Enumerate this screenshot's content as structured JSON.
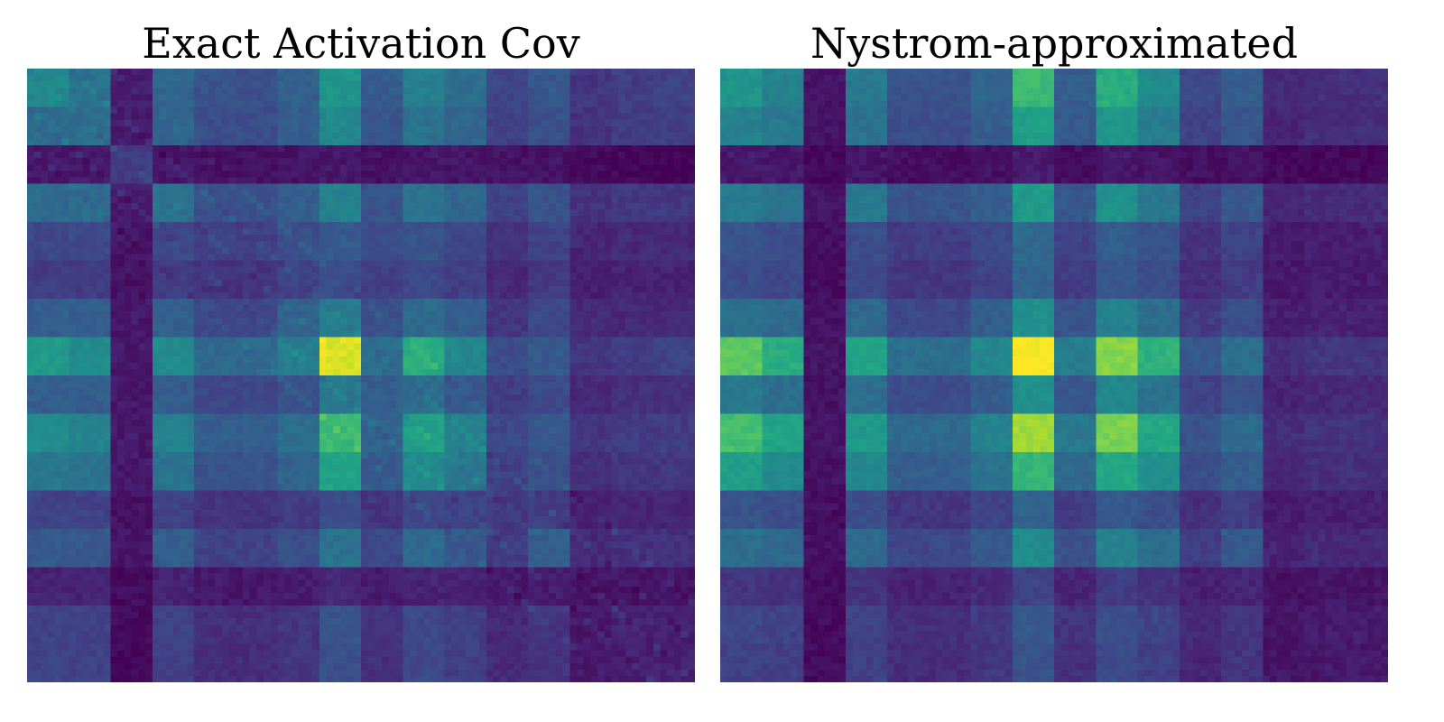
{
  "chart_data": [
    {
      "type": "heatmap",
      "title": "Exact Activation Cov",
      "colormap": "viridis",
      "grid": false,
      "block_rows": 16,
      "block_cols": 16,
      "fine_cells_per_block": 6,
      "values": [
        [
          0.46,
          0.38,
          0.08,
          0.33,
          0.26,
          0.25,
          0.31,
          0.52,
          0.29,
          0.43,
          0.36,
          0.21,
          0.27,
          0.16,
          0.19,
          0.2
        ],
        [
          0.36,
          0.36,
          0.08,
          0.33,
          0.24,
          0.24,
          0.3,
          0.46,
          0.27,
          0.38,
          0.33,
          0.2,
          0.25,
          0.15,
          0.18,
          0.19
        ],
        [
          0.07,
          0.07,
          0.18,
          0.06,
          0.05,
          0.05,
          0.06,
          0.07,
          0.05,
          0.06,
          0.06,
          0.05,
          0.05,
          0.03,
          0.02,
          0.01
        ],
        [
          0.35,
          0.35,
          0.08,
          0.38,
          0.25,
          0.25,
          0.3,
          0.44,
          0.26,
          0.38,
          0.33,
          0.2,
          0.26,
          0.15,
          0.17,
          0.17
        ],
        [
          0.22,
          0.22,
          0.06,
          0.22,
          0.2,
          0.2,
          0.24,
          0.28,
          0.24,
          0.26,
          0.22,
          0.15,
          0.2,
          0.11,
          0.12,
          0.12
        ],
        [
          0.18,
          0.18,
          0.05,
          0.18,
          0.15,
          0.15,
          0.2,
          0.24,
          0.19,
          0.22,
          0.19,
          0.12,
          0.17,
          0.09,
          0.1,
          0.1
        ],
        [
          0.3,
          0.3,
          0.07,
          0.31,
          0.22,
          0.22,
          0.32,
          0.42,
          0.25,
          0.35,
          0.3,
          0.16,
          0.22,
          0.12,
          0.12,
          0.12
        ],
        [
          0.55,
          0.48,
          0.07,
          0.48,
          0.34,
          0.34,
          0.42,
          0.95,
          0.36,
          0.62,
          0.46,
          0.24,
          0.28,
          0.16,
          0.18,
          0.2
        ],
        [
          0.3,
          0.3,
          0.07,
          0.3,
          0.22,
          0.22,
          0.26,
          0.4,
          0.3,
          0.36,
          0.28,
          0.18,
          0.23,
          0.12,
          0.14,
          0.14
        ],
        [
          0.48,
          0.44,
          0.07,
          0.44,
          0.3,
          0.3,
          0.36,
          0.68,
          0.32,
          0.56,
          0.44,
          0.22,
          0.28,
          0.16,
          0.18,
          0.18
        ],
        [
          0.4,
          0.38,
          0.07,
          0.38,
          0.26,
          0.26,
          0.32,
          0.58,
          0.28,
          0.48,
          0.4,
          0.2,
          0.25,
          0.14,
          0.16,
          0.16
        ],
        [
          0.2,
          0.2,
          0.05,
          0.2,
          0.15,
          0.15,
          0.18,
          0.24,
          0.16,
          0.22,
          0.2,
          0.17,
          0.18,
          0.1,
          0.11,
          0.11
        ],
        [
          0.28,
          0.28,
          0.06,
          0.3,
          0.2,
          0.2,
          0.24,
          0.38,
          0.22,
          0.34,
          0.28,
          0.18,
          0.3,
          0.12,
          0.14,
          0.14
        ],
        [
          0.1,
          0.1,
          0.03,
          0.1,
          0.07,
          0.07,
          0.08,
          0.12,
          0.08,
          0.1,
          0.1,
          0.07,
          0.08,
          0.06,
          0.06,
          0.06
        ],
        [
          0.2,
          0.2,
          0.03,
          0.2,
          0.14,
          0.14,
          0.16,
          0.26,
          0.15,
          0.22,
          0.19,
          0.12,
          0.16,
          0.07,
          0.1,
          0.09
        ],
        [
          0.2,
          0.2,
          0.02,
          0.19,
          0.13,
          0.13,
          0.16,
          0.25,
          0.14,
          0.22,
          0.19,
          0.12,
          0.15,
          0.07,
          0.09,
          0.1
        ]
      ]
    },
    {
      "type": "heatmap",
      "title": "Nystrom-approximated",
      "colormap": "viridis",
      "grid": false,
      "block_rows": 16,
      "block_cols": 16,
      "fine_cells_per_block": 6,
      "values": [
        [
          0.52,
          0.44,
          0.06,
          0.4,
          0.26,
          0.26,
          0.32,
          0.68,
          0.3,
          0.62,
          0.48,
          0.22,
          0.3,
          0.12,
          0.14,
          0.14
        ],
        [
          0.44,
          0.4,
          0.06,
          0.38,
          0.24,
          0.24,
          0.3,
          0.56,
          0.28,
          0.52,
          0.42,
          0.2,
          0.27,
          0.11,
          0.13,
          0.13
        ],
        [
          0.07,
          0.07,
          0.02,
          0.06,
          0.04,
          0.04,
          0.05,
          0.08,
          0.04,
          0.07,
          0.06,
          0.04,
          0.05,
          0.02,
          0.02,
          0.02
        ],
        [
          0.42,
          0.38,
          0.06,
          0.4,
          0.26,
          0.26,
          0.3,
          0.54,
          0.28,
          0.5,
          0.4,
          0.2,
          0.28,
          0.11,
          0.13,
          0.13
        ],
        [
          0.26,
          0.24,
          0.04,
          0.24,
          0.18,
          0.18,
          0.22,
          0.34,
          0.2,
          0.3,
          0.26,
          0.15,
          0.2,
          0.08,
          0.09,
          0.09
        ],
        [
          0.24,
          0.22,
          0.04,
          0.22,
          0.16,
          0.16,
          0.2,
          0.32,
          0.18,
          0.28,
          0.24,
          0.14,
          0.18,
          0.07,
          0.08,
          0.08
        ],
        [
          0.36,
          0.34,
          0.05,
          0.34,
          0.22,
          0.22,
          0.3,
          0.5,
          0.26,
          0.44,
          0.36,
          0.18,
          0.24,
          0.09,
          0.1,
          0.1
        ],
        [
          0.75,
          0.62,
          0.06,
          0.58,
          0.36,
          0.36,
          0.46,
          1.0,
          0.42,
          0.82,
          0.64,
          0.28,
          0.36,
          0.14,
          0.16,
          0.16
        ],
        [
          0.4,
          0.36,
          0.05,
          0.36,
          0.24,
          0.24,
          0.3,
          0.5,
          0.28,
          0.46,
          0.38,
          0.2,
          0.26,
          0.1,
          0.12,
          0.12
        ],
        [
          0.7,
          0.58,
          0.06,
          0.54,
          0.34,
          0.34,
          0.44,
          0.86,
          0.4,
          0.8,
          0.6,
          0.26,
          0.34,
          0.13,
          0.15,
          0.15
        ],
        [
          0.56,
          0.48,
          0.05,
          0.46,
          0.3,
          0.3,
          0.38,
          0.66,
          0.34,
          0.6,
          0.5,
          0.24,
          0.3,
          0.12,
          0.14,
          0.14
        ],
        [
          0.26,
          0.24,
          0.04,
          0.24,
          0.16,
          0.16,
          0.2,
          0.32,
          0.18,
          0.28,
          0.24,
          0.14,
          0.18,
          0.08,
          0.09,
          0.09
        ],
        [
          0.36,
          0.34,
          0.05,
          0.34,
          0.22,
          0.22,
          0.28,
          0.48,
          0.26,
          0.44,
          0.36,
          0.18,
          0.28,
          0.1,
          0.12,
          0.12
        ],
        [
          0.16,
          0.15,
          0.03,
          0.15,
          0.1,
          0.1,
          0.12,
          0.2,
          0.11,
          0.18,
          0.15,
          0.09,
          0.11,
          0.05,
          0.06,
          0.06
        ],
        [
          0.22,
          0.2,
          0.03,
          0.2,
          0.14,
          0.14,
          0.17,
          0.28,
          0.15,
          0.25,
          0.21,
          0.12,
          0.16,
          0.06,
          0.08,
          0.08
        ],
        [
          0.2,
          0.19,
          0.03,
          0.19,
          0.13,
          0.13,
          0.16,
          0.26,
          0.14,
          0.23,
          0.19,
          0.11,
          0.15,
          0.06,
          0.07,
          0.07
        ]
      ]
    }
  ]
}
